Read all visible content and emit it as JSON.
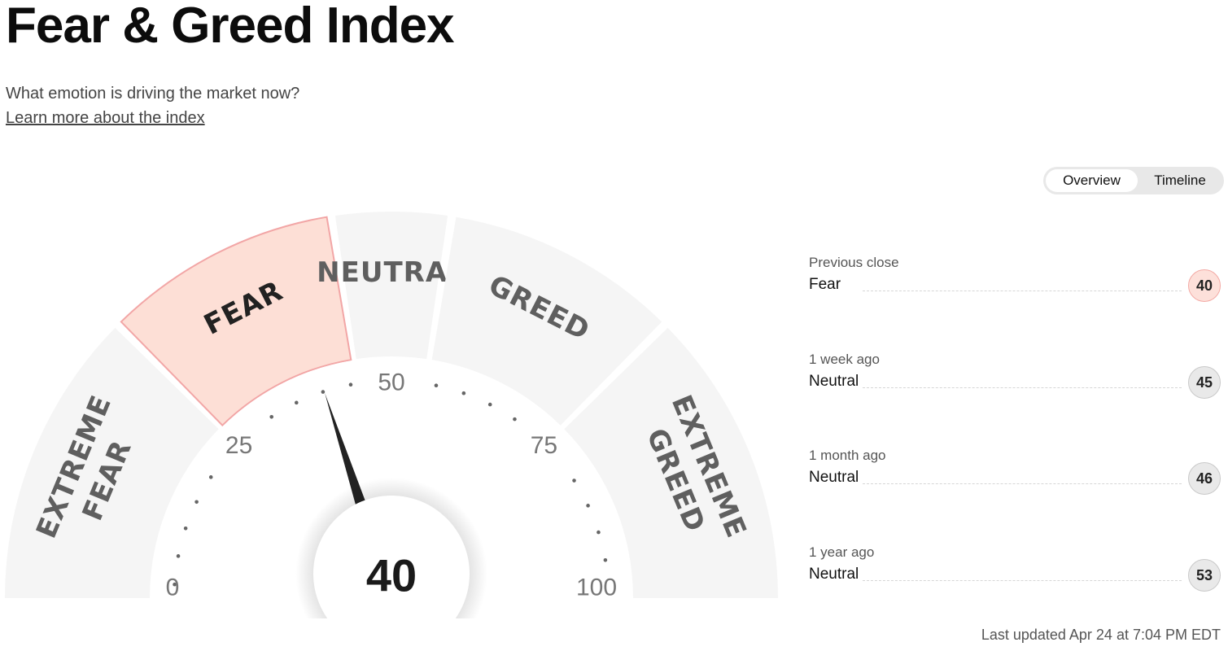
{
  "page": {
    "title": "Fear & Greed Index",
    "subtitle": "What emotion is driving the market now?",
    "learn_more": "Learn more about the index"
  },
  "toggle": {
    "options": [
      "Overview",
      "Timeline"
    ],
    "selected": "Overview"
  },
  "chart_data": {
    "type": "gauge",
    "value": 40,
    "range": [
      0,
      100
    ],
    "zones": [
      {
        "label_lines": [
          "EXTREME",
          "FEAR"
        ],
        "from": 0,
        "to": 25,
        "active": false
      },
      {
        "label_lines": [
          "FEAR"
        ],
        "from": 25,
        "to": 45,
        "active": true
      },
      {
        "label_lines": [
          "NEUTRAL"
        ],
        "from": 45,
        "to": 55,
        "active": false
      },
      {
        "label_lines": [
          "GREED"
        ],
        "from": 55,
        "to": 75,
        "active": false
      },
      {
        "label_lines": [
          "EXTREME",
          "GREED"
        ],
        "from": 75,
        "to": 100,
        "active": false
      }
    ],
    "tick_labels": [
      "0",
      "25",
      "50",
      "75",
      "100"
    ],
    "colors": {
      "zone": "#f5f5f5",
      "active_zone": "#fddfd6",
      "active_border": "#f2a6a6",
      "needle": "#222222",
      "label": "#6a6a6a"
    }
  },
  "history": [
    {
      "when": "Previous close",
      "rating": "Fear",
      "score": "40",
      "tone": "fear"
    },
    {
      "when": "1 week ago",
      "rating": "Neutral",
      "score": "45",
      "tone": "neutral"
    },
    {
      "when": "1 month ago",
      "rating": "Neutral",
      "score": "46",
      "tone": "neutral"
    },
    {
      "when": "1 year ago",
      "rating": "Neutral",
      "score": "53",
      "tone": "neutral"
    }
  ],
  "last_updated": "Last updated Apr 24 at 7:04 PM EDT"
}
